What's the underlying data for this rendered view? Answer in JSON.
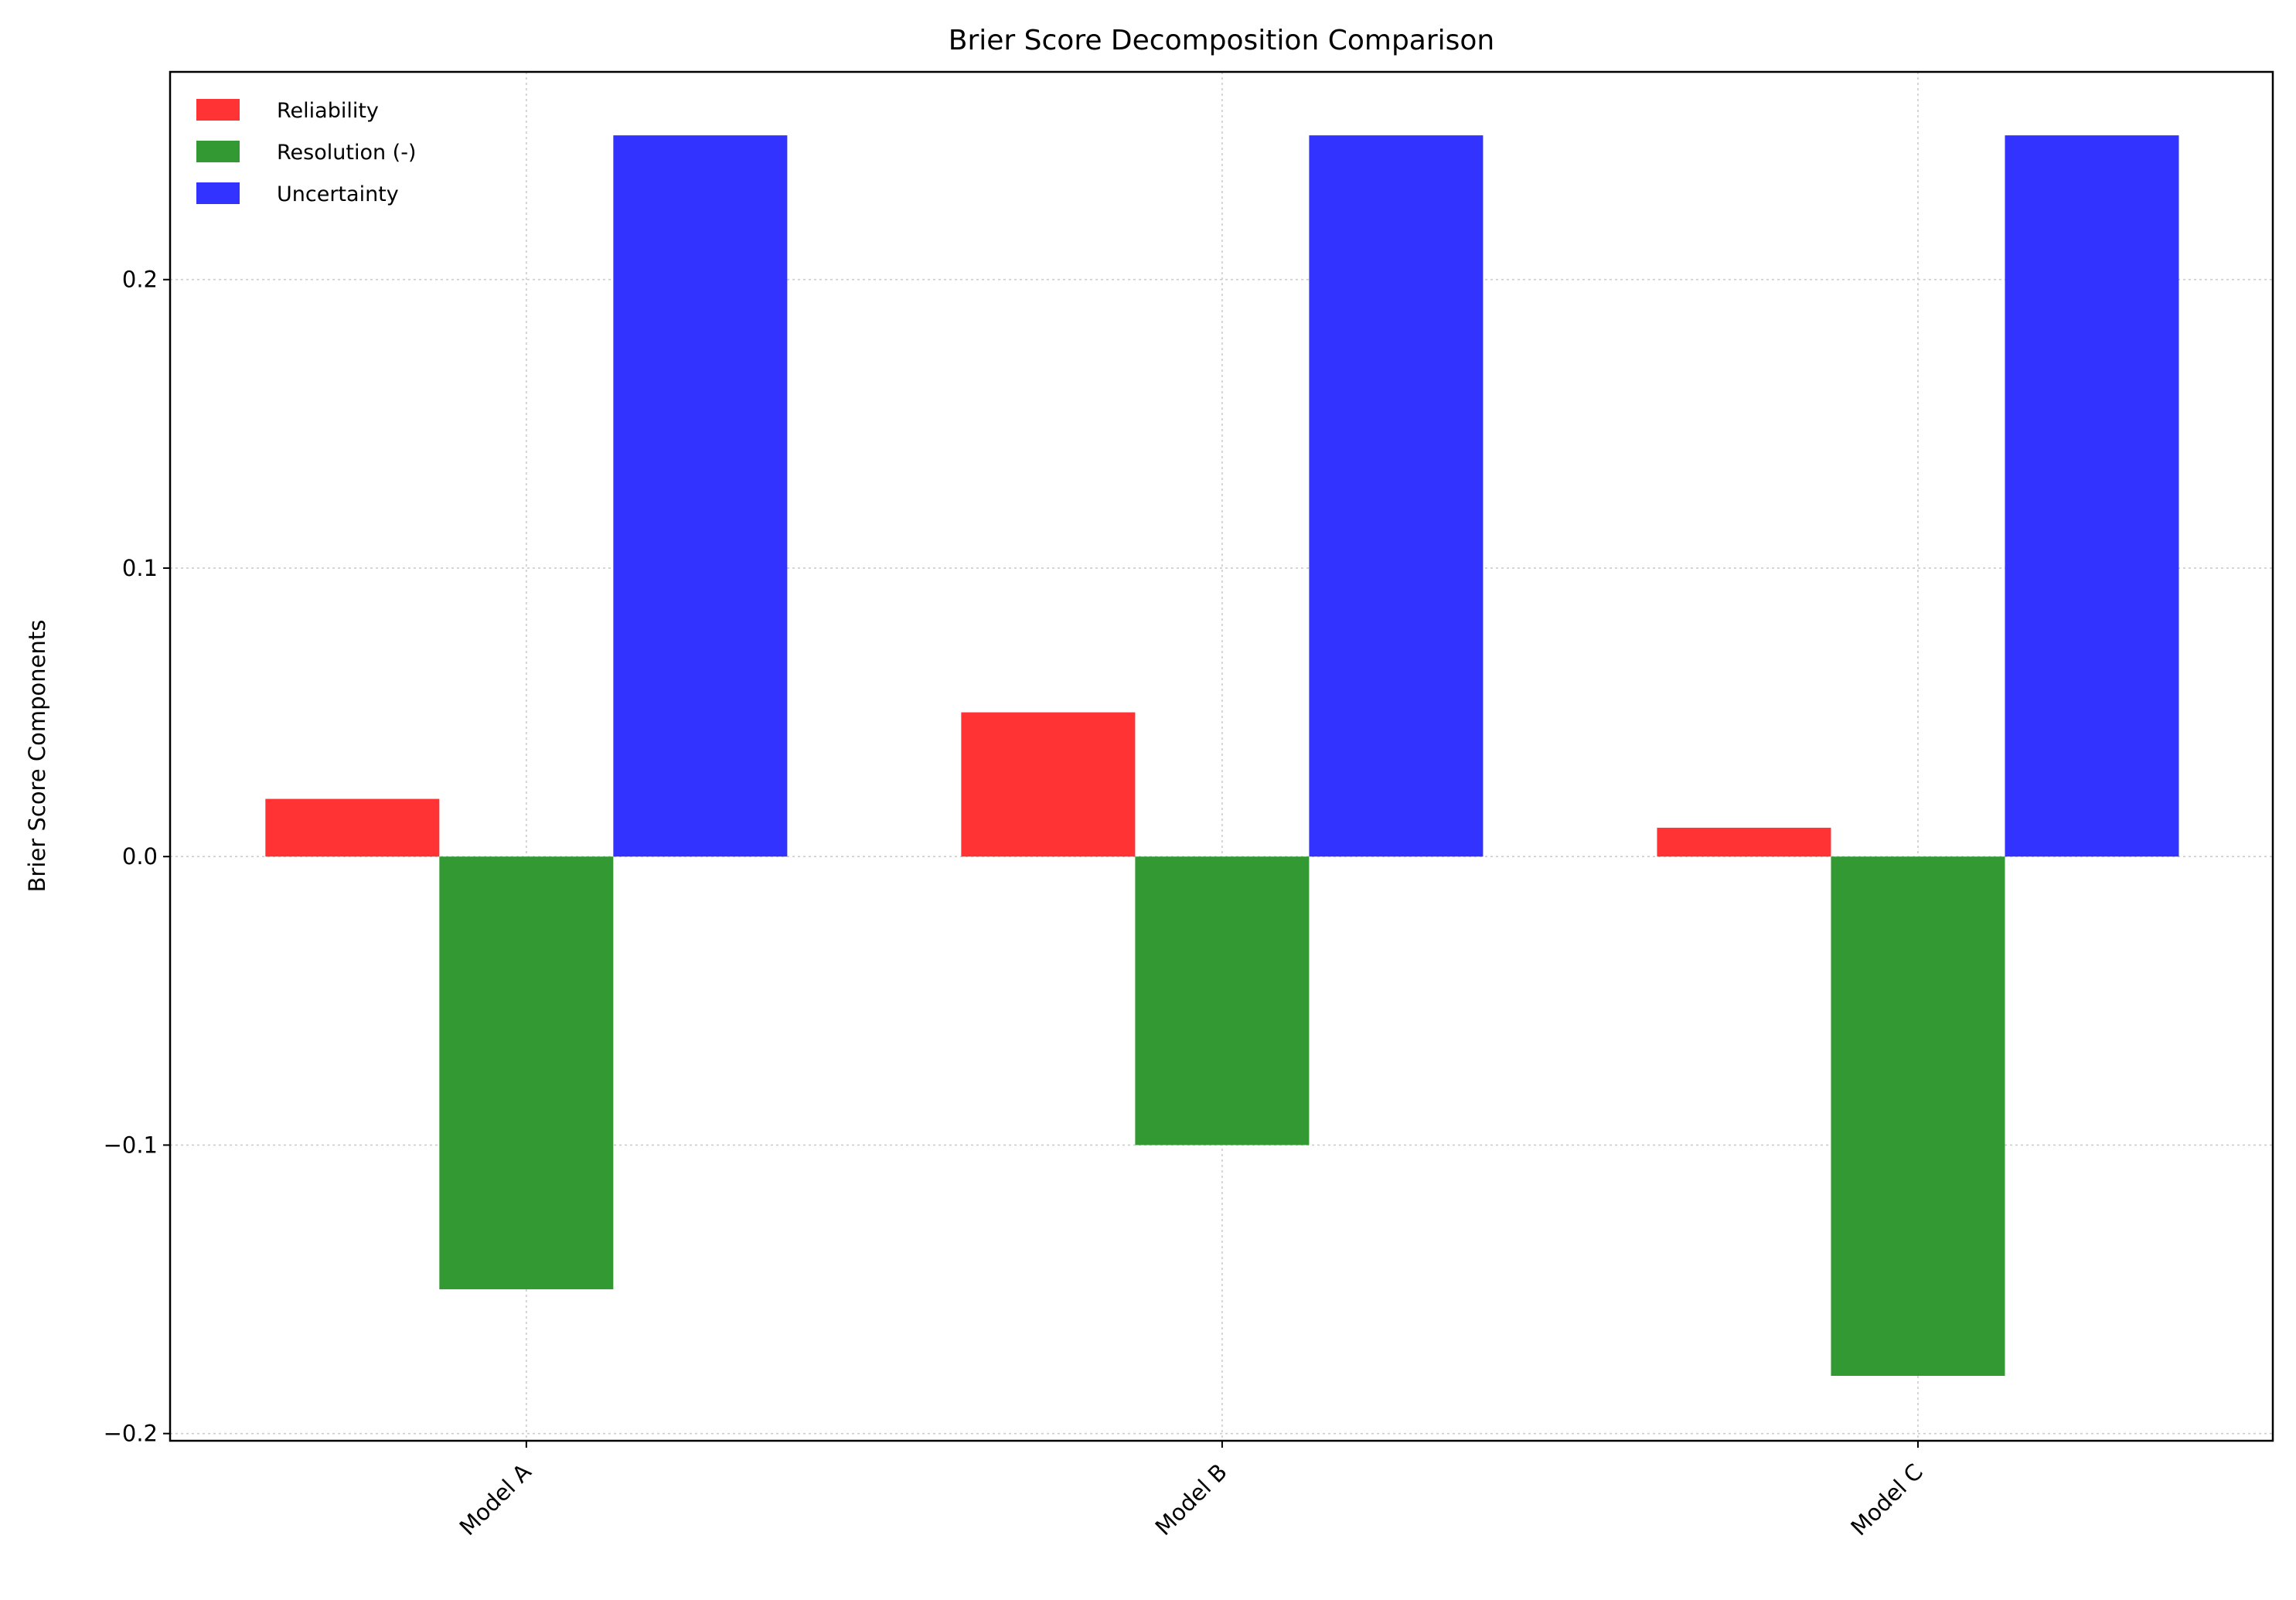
{
  "chart_data": {
    "type": "bar",
    "title": "Brier Score Decomposition Comparison",
    "xlabel": "",
    "ylabel": "Brier Score Components",
    "categories": [
      "Model A",
      "Model B",
      "Model C"
    ],
    "series": [
      {
        "name": "Reliability",
        "values": [
          0.02,
          0.05,
          0.01
        ],
        "color": "#ff3333"
      },
      {
        "name": "Resolution (-)",
        "values": [
          -0.15,
          -0.1,
          -0.18
        ],
        "color": "#339933"
      },
      {
        "name": "Uncertainty",
        "values": [
          0.25,
          0.25,
          0.25
        ],
        "color": "#3333ff"
      }
    ],
    "ylim": [
      -0.2025,
      0.272
    ],
    "yticks": [
      -0.2,
      -0.1,
      0.0,
      0.1,
      0.2
    ],
    "ytick_labels": [
      "−0.2",
      "−0.1",
      "0.0",
      "0.1",
      "0.2"
    ],
    "grid": true,
    "legend_position": "top-left"
  }
}
